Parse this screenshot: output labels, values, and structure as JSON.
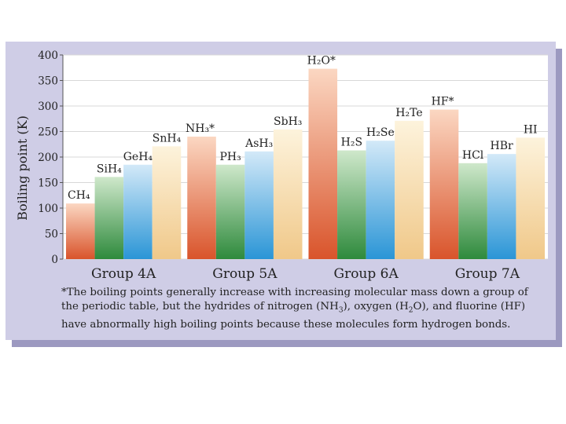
{
  "page": {
    "background": "#ffffff",
    "panel_color": "#cfcde6",
    "shadow_color": "#9c99c0",
    "plot_bg": "#ffffff"
  },
  "chart_data": {
    "type": "bar",
    "ylabel": "Boiling point (K)",
    "ylim": [
      0,
      400
    ],
    "yticks": [
      0,
      50,
      100,
      150,
      200,
      250,
      300,
      350,
      400
    ],
    "grid": true,
    "groups": [
      {
        "name": "Group 4A",
        "bars": [
          {
            "label": "CH₄",
            "value": 109
          },
          {
            "label": "SiH₄",
            "value": 161
          },
          {
            "label": "GeH₄",
            "value": 185
          },
          {
            "label": "SnH₄",
            "value": 221
          }
        ]
      },
      {
        "name": "Group 5A",
        "bars": [
          {
            "label": "NH₃*",
            "value": 240
          },
          {
            "label": "PH₃",
            "value": 185
          },
          {
            "label": "AsH₃",
            "value": 211
          },
          {
            "label": "SbH₃",
            "value": 254
          }
        ]
      },
      {
        "name": "Group 6A",
        "bars": [
          {
            "label": "H₂O*",
            "value": 373
          },
          {
            "label": "H₂S",
            "value": 213
          },
          {
            "label": "H₂Se",
            "value": 232
          },
          {
            "label": "H₂Te",
            "value": 271
          }
        ]
      },
      {
        "name": "Group 7A",
        "bars": [
          {
            "label": "HF*",
            "value": 293
          },
          {
            "label": "HCl",
            "value": 188
          },
          {
            "label": "HBr",
            "value": 206
          },
          {
            "label": "HI",
            "value": 238
          }
        ]
      }
    ],
    "bar_colors": [
      {
        "name": "period2",
        "top": "#fbd7c2",
        "bottom": "#d9542b"
      },
      {
        "name": "period3",
        "top": "#cfe8cb",
        "bottom": "#2e8a3c"
      },
      {
        "name": "period4",
        "top": "#d3e9f8",
        "bottom": "#2a95d6"
      },
      {
        "name": "period5",
        "top": "#fdf3dc",
        "bottom": "#f0c889"
      }
    ]
  },
  "caption": {
    "line1": "*The boiling points generally increase with increasing molecular mass down a group of",
    "line2_a": "the periodic table, but the hydrides of nitrogen (NH",
    "line2_b": "3",
    "line2_c": "), oxygen (H",
    "line2_d": "2",
    "line2_e": "O), and fluorine (HF)",
    "line3": "have abnormally high boiling points because these molecules form hydrogen bonds."
  }
}
